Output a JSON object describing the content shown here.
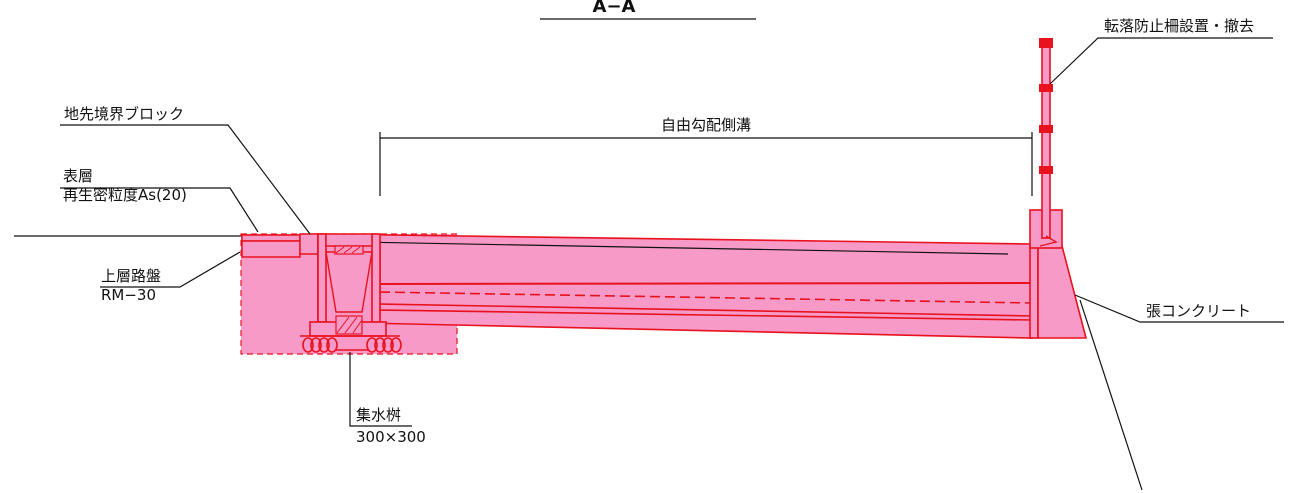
{
  "title": "A−A",
  "labels": {
    "fence": "転落防止柵設置・撤去",
    "boundary_block": "地先境界ブロック",
    "gutter": "自由勾配側溝",
    "surface": "表層",
    "surface_material": "再生密粒度As(20)",
    "base": "上層路盤",
    "base_material": "RM−30",
    "lining": "張コンクリート",
    "catch_basin": "集水桝",
    "catch_basin_size": "300×300"
  },
  "colors": {
    "fill": "#f79ac8",
    "outline": "#e8121e",
    "ink": "#111111"
  }
}
